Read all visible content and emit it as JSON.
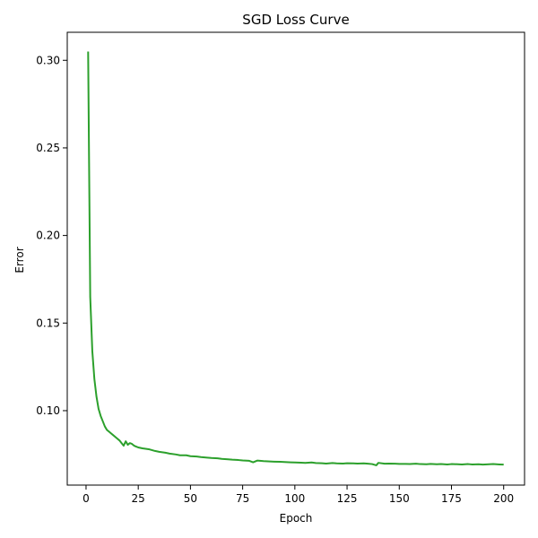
{
  "chart_data": {
    "type": "line",
    "title": "SGD Loss Curve",
    "xlabel": "Epoch",
    "ylabel": "Error",
    "xlim": [
      -9,
      210
    ],
    "ylim": [
      0.0575,
      0.316
    ],
    "xticks": [
      0,
      25,
      50,
      75,
      100,
      125,
      150,
      175,
      200
    ],
    "yticks": [
      0.1,
      0.15,
      0.2,
      0.25,
      0.3
    ],
    "grid": false,
    "legend": "none",
    "line_color": "#2ca02c",
    "series": [
      {
        "x": [
          1,
          2,
          3,
          4,
          5,
          6,
          7,
          8,
          9,
          10,
          11,
          12,
          13,
          14,
          15,
          16,
          17,
          18,
          19,
          20,
          21,
          22,
          23,
          24,
          25,
          27,
          30,
          33,
          35,
          38,
          40,
          43,
          45,
          48,
          50,
          53,
          55,
          58,
          60,
          63,
          65,
          68,
          70,
          73,
          75,
          78,
          80,
          82,
          85,
          88,
          90,
          93,
          95,
          98,
          100,
          103,
          105,
          108,
          110,
          113,
          115,
          118,
          120,
          123,
          125,
          128,
          130,
          133,
          135,
          137,
          139,
          140,
          143,
          145,
          148,
          150,
          153,
          155,
          158,
          160,
          163,
          165,
          168,
          170,
          173,
          175,
          178,
          180,
          183,
          185,
          188,
          190,
          193,
          195,
          198,
          200
        ],
        "values": [
          0.305,
          0.165,
          0.134,
          0.118,
          0.108,
          0.101,
          0.097,
          0.094,
          0.091,
          0.089,
          0.088,
          0.087,
          0.086,
          0.085,
          0.084,
          0.083,
          0.0815,
          0.08,
          0.0825,
          0.0805,
          0.0815,
          0.081,
          0.08,
          0.0795,
          0.079,
          0.0785,
          0.078,
          0.077,
          0.0765,
          0.076,
          0.0755,
          0.075,
          0.0745,
          0.0745,
          0.074,
          0.0738,
          0.0735,
          0.0732,
          0.073,
          0.0728,
          0.0725,
          0.0722,
          0.072,
          0.0718,
          0.0716,
          0.0714,
          0.0705,
          0.0715,
          0.0712,
          0.071,
          0.0709,
          0.0708,
          0.0707,
          0.0705,
          0.0704,
          0.0703,
          0.0702,
          0.0704,
          0.0701,
          0.07,
          0.0698,
          0.0701,
          0.0699,
          0.0698,
          0.07,
          0.0699,
          0.0698,
          0.0699,
          0.0697,
          0.0695,
          0.0688,
          0.0702,
          0.0697,
          0.0698,
          0.0697,
          0.0696,
          0.0696,
          0.0695,
          0.0697,
          0.0695,
          0.0694,
          0.0696,
          0.0694,
          0.0695,
          0.0693,
          0.0695,
          0.0694,
          0.0693,
          0.0695,
          0.0693,
          0.0694,
          0.0692,
          0.0694,
          0.0695,
          0.0693,
          0.0692
        ]
      }
    ]
  }
}
